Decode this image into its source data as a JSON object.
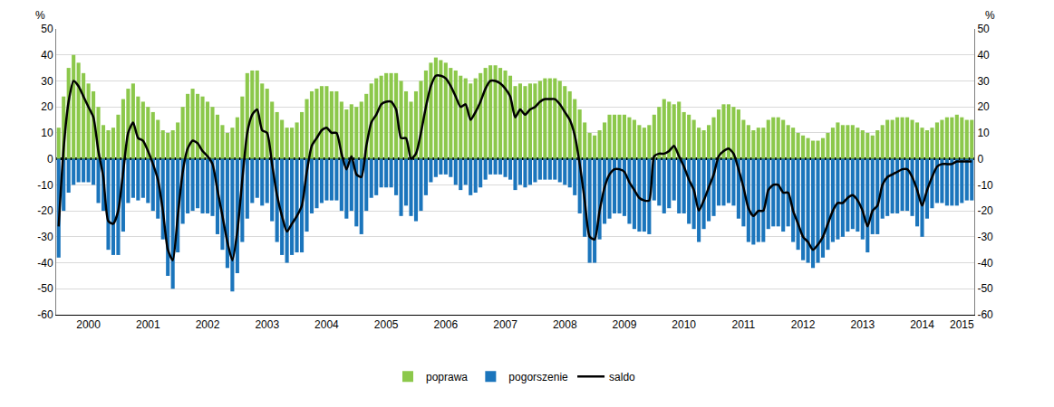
{
  "chart_data": {
    "type": "bar",
    "categories": [
      null,
      null,
      null,
      null,
      null,
      null,
      "2000",
      null,
      null,
      null,
      null,
      null,
      null,
      null,
      null,
      null,
      null,
      null,
      "2001",
      null,
      null,
      null,
      null,
      null,
      null,
      null,
      null,
      null,
      null,
      null,
      "2002",
      null,
      null,
      null,
      null,
      null,
      null,
      null,
      null,
      null,
      null,
      null,
      "2003",
      null,
      null,
      null,
      null,
      null,
      null,
      null,
      null,
      null,
      null,
      null,
      "2004",
      null,
      null,
      null,
      null,
      null,
      null,
      null,
      null,
      null,
      null,
      null,
      "2005",
      null,
      null,
      null,
      null,
      null,
      null,
      null,
      null,
      null,
      null,
      null,
      "2006",
      null,
      null,
      null,
      null,
      null,
      null,
      null,
      null,
      null,
      null,
      null,
      "2007",
      null,
      null,
      null,
      null,
      null,
      null,
      null,
      null,
      null,
      null,
      null,
      "2008",
      null,
      null,
      null,
      null,
      null,
      null,
      null,
      null,
      null,
      null,
      null,
      "2009",
      null,
      null,
      null,
      null,
      null,
      null,
      null,
      null,
      null,
      null,
      null,
      "2010",
      null,
      null,
      null,
      null,
      null,
      null,
      null,
      null,
      null,
      null,
      null,
      "2011",
      null,
      null,
      null,
      null,
      null,
      null,
      null,
      null,
      null,
      null,
      null,
      "2012",
      null,
      null,
      null,
      null,
      null,
      null,
      null,
      null,
      null,
      null,
      null,
      "2013",
      null,
      null,
      null,
      null,
      null,
      null,
      null,
      null,
      null,
      null,
      null,
      "2014",
      null,
      null,
      null,
      null,
      null,
      null,
      null,
      "2015",
      null,
      null
    ],
    "series": [
      {
        "name": "poprawa",
        "color": "#8cc84b",
        "type": "bar",
        "values": [
          12,
          24,
          35,
          40,
          37,
          33,
          29,
          26,
          20,
          13,
          11,
          12,
          17,
          23,
          27,
          29,
          24,
          22,
          20,
          18,
          15,
          11,
          10,
          11,
          14,
          20,
          25,
          27,
          25,
          24,
          22,
          20,
          17,
          13,
          10,
          12,
          16,
          24,
          33,
          34,
          34,
          29,
          27,
          22,
          18,
          15,
          12,
          12,
          14,
          18,
          23,
          26,
          27,
          28,
          28,
          26,
          26,
          22,
          19,
          21,
          20,
          22,
          25,
          29,
          31,
          32,
          33,
          33,
          33,
          30,
          26,
          22,
          26,
          30,
          34,
          37,
          39,
          38,
          37,
          35,
          34,
          32,
          31,
          29,
          31,
          33,
          35,
          36,
          36,
          35,
          34,
          32,
          28,
          29,
          28,
          29,
          29,
          30,
          31,
          31,
          31,
          30,
          28,
          26,
          23,
          19,
          14,
          10,
          9,
          11,
          14,
          17,
          17,
          17,
          17,
          16,
          15,
          13,
          12,
          13,
          17,
          20,
          23,
          22,
          21,
          22,
          18,
          17,
          15,
          12,
          11,
          13,
          16,
          19,
          21,
          21,
          20,
          19,
          15,
          13,
          11,
          12,
          12,
          15,
          16,
          16,
          15,
          13,
          12,
          10,
          9,
          8,
          7,
          7,
          8,
          10,
          12,
          14,
          13,
          13,
          13,
          12,
          11,
          10,
          9,
          11,
          13,
          15,
          15,
          16,
          16,
          16,
          15,
          14,
          12,
          11,
          12,
          14,
          15,
          16,
          16,
          17,
          16,
          15,
          15
        ]
      },
      {
        "name": "pogorszenie",
        "color": "#1b75bc",
        "type": "bar",
        "values": [
          -38,
          -20,
          -13,
          -10,
          -9,
          -9,
          -9,
          -10,
          -17,
          -20,
          -35,
          -37,
          -37,
          -28,
          -17,
          -15,
          -16,
          -15,
          -17,
          -20,
          -23,
          -31,
          -45,
          -50,
          -36,
          -25,
          -21,
          -20,
          -19,
          -21,
          -21,
          -22,
          -29,
          -35,
          -42,
          -51,
          -44,
          -32,
          -23,
          -17,
          -15,
          -18,
          -17,
          -24,
          -32,
          -37,
          -40,
          -37,
          -36,
          -36,
          -28,
          -21,
          -19,
          -17,
          -16,
          -16,
          -16,
          -20,
          -23,
          -20,
          -26,
          -29,
          -20,
          -15,
          -14,
          -11,
          -11,
          -11,
          -14,
          -22,
          -18,
          -22,
          -24,
          -20,
          -14,
          -9,
          -7,
          -6,
          -6,
          -7,
          -10,
          -12,
          -10,
          -14,
          -13,
          -11,
          -8,
          -6,
          -6,
          -6,
          -7,
          -8,
          -12,
          -10,
          -11,
          -10,
          -9,
          -8,
          -8,
          -8,
          -8,
          -9,
          -10,
          -11,
          -14,
          -21,
          -30,
          -40,
          -40,
          -31,
          -25,
          -23,
          -21,
          -21,
          -22,
          -25,
          -27,
          -28,
          -28,
          -29,
          -16,
          -18,
          -21,
          -19,
          -16,
          -21,
          -21,
          -25,
          -27,
          -32,
          -27,
          -24,
          -22,
          -18,
          -18,
          -17,
          -18,
          -23,
          -26,
          -32,
          -33,
          -32,
          -32,
          -27,
          -26,
          -26,
          -28,
          -26,
          -32,
          -35,
          -39,
          -40,
          -42,
          -40,
          -38,
          -35,
          -32,
          -31,
          -30,
          -28,
          -27,
          -28,
          -31,
          -36,
          -29,
          -29,
          -23,
          -22,
          -21,
          -21,
          -20,
          -20,
          -22,
          -26,
          -30,
          -23,
          -19,
          -17,
          -17,
          -18,
          -18,
          -18,
          -17,
          -16,
          -16
        ]
      },
      {
        "name": "saldo",
        "color": "#000000",
        "type": "line",
        "axis": "y2",
        "values": [
          -26,
          4,
          22,
          30,
          28,
          24,
          20,
          16,
          3,
          -7,
          -24,
          -25,
          -20,
          -5,
          10,
          14,
          8,
          7,
          3,
          -2,
          -8,
          -20,
          -35,
          -39,
          -22,
          -5,
          4,
          7,
          6,
          3,
          1,
          -2,
          -12,
          -22,
          -32,
          -39,
          -28,
          -8,
          10,
          17,
          19,
          11,
          10,
          -2,
          -14,
          -22,
          -28,
          -25,
          -22,
          -18,
          -5,
          5,
          8,
          11,
          12,
          10,
          10,
          2,
          -4,
          1,
          -6,
          -7,
          5,
          14,
          17,
          21,
          22,
          22,
          19,
          8,
          8,
          0,
          2,
          10,
          20,
          28,
          32,
          32,
          31,
          28,
          24,
          20,
          21,
          15,
          18,
          22,
          27,
          30,
          30,
          29,
          27,
          24,
          16,
          19,
          17,
          19,
          20,
          22,
          23,
          23,
          23,
          21,
          18,
          15,
          9,
          -2,
          -16,
          -30,
          -31,
          -20,
          -11,
          -6,
          -4,
          -4,
          -5,
          -9,
          -12,
          -15,
          -16,
          -16,
          1,
          2,
          2,
          3,
          5,
          1,
          -3,
          -8,
          -12,
          -20,
          -16,
          -11,
          -6,
          1,
          3,
          4,
          2,
          -4,
          -11,
          -19,
          -22,
          -20,
          -20,
          -12,
          -10,
          -10,
          -13,
          -13,
          -20,
          -25,
          -30,
          -32,
          -35,
          -33,
          -30,
          -25,
          -20,
          -17,
          -17,
          -15,
          -14,
          -16,
          -20,
          -26,
          -20,
          -18,
          -10,
          -7,
          -6,
          -5,
          -4,
          -4,
          -7,
          -12,
          -18,
          -12,
          -7,
          -3,
          -2,
          -2,
          -2,
          -1,
          -1,
          -1,
          -1
        ]
      }
    ],
    "ylim": [
      -60,
      50
    ],
    "yticks": [
      -60,
      -50,
      -40,
      -30,
      -20,
      -10,
      0,
      10,
      20,
      30,
      40,
      50
    ],
    "y2lim": [
      -60,
      50
    ],
    "y2ticks": [
      -60,
      -50,
      -40,
      -30,
      -20,
      -10,
      0,
      10,
      20,
      30,
      40,
      50
    ],
    "ylabel": "%",
    "y2label": "%",
    "stacked": true,
    "grid": true,
    "legend": "bottom"
  }
}
